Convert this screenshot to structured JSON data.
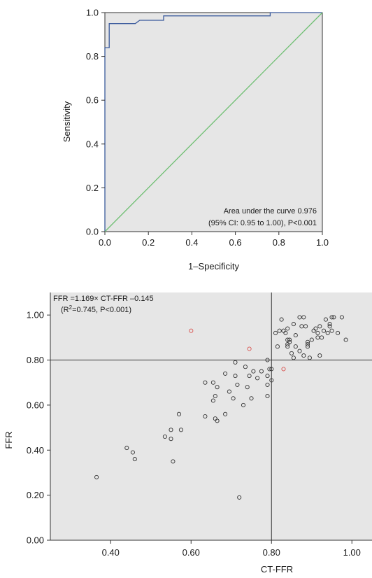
{
  "colors": {
    "panel": "#e6e6e6",
    "roc_line": "#3a5a9c",
    "reference_line": "#6fbf73",
    "axis": "#333333",
    "point": "#333333",
    "outlier_point": "#d9534f"
  },
  "chart_data": [
    {
      "type": "line",
      "title": "",
      "xlabel": "1–Specificity",
      "ylabel": "Sensitivity",
      "xlim": [
        0,
        1
      ],
      "ylim": [
        0,
        1
      ],
      "xticks": [
        "0.0",
        "0.2",
        "0.4",
        "0.6",
        "0.8",
        "1.0"
      ],
      "yticks": [
        "0.0",
        "0.2",
        "0.4",
        "0.6",
        "0.8",
        "1.0"
      ],
      "grid": false,
      "annotation": [
        "Area under the curve 0.976",
        "(95% CI: 0.95 to 1.00), P<0.001"
      ],
      "series": [
        {
          "x": [
            0,
            0,
            0.02,
            0.02,
            0.14,
            0.16,
            0.27,
            0.27,
            0.76,
            0.76,
            1.0
          ],
          "y": [
            0,
            0.84,
            0.84,
            0.95,
            0.95,
            0.965,
            0.965,
            0.985,
            0.985,
            1.0,
            1.0
          ]
        },
        {
          "x": [
            0,
            1
          ],
          "y": [
            0,
            1
          ]
        }
      ]
    },
    {
      "type": "scatter",
      "title": "",
      "xlabel": "CT-FFR",
      "ylabel": "FFR",
      "xlim": [
        0.25,
        1.05
      ],
      "ylim": [
        0,
        1.1
      ],
      "xticks": [
        "0.40",
        "0.60",
        "0.80",
        "1.00"
      ],
      "yticks": [
        "0.00",
        "0.20",
        "0.40",
        "0.60",
        "0.80",
        "1.00"
      ],
      "grid": false,
      "cutoff_lines": {
        "x": 0.8,
        "y": 0.8
      },
      "annotation": {
        "equation": "FFR =1.169× CT-FFR –0.145",
        "r2_prefix": "(R",
        "r2_sup": "2",
        "r2_suffix": "=0.745, P<0.001)"
      },
      "series": [
        {
          "points": [
            [
              0.365,
              0.28
            ],
            [
              0.44,
              0.41
            ],
            [
              0.455,
              0.39
            ],
            [
              0.46,
              0.36
            ],
            [
              0.535,
              0.46
            ],
            [
              0.55,
              0.49
            ],
            [
              0.55,
              0.45
            ],
            [
              0.555,
              0.35
            ],
            [
              0.57,
              0.56
            ],
            [
              0.575,
              0.49
            ],
            [
              0.635,
              0.7
            ],
            [
              0.635,
              0.55
            ],
            [
              0.655,
              0.62
            ],
            [
              0.655,
              0.7
            ],
            [
              0.66,
              0.64
            ],
            [
              0.66,
              0.54
            ],
            [
              0.665,
              0.53
            ],
            [
              0.665,
              0.68
            ],
            [
              0.685,
              0.56
            ],
            [
              0.685,
              0.74
            ],
            [
              0.695,
              0.66
            ],
            [
              0.705,
              0.63
            ],
            [
              0.71,
              0.79
            ],
            [
              0.71,
              0.73
            ],
            [
              0.715,
              0.69
            ],
            [
              0.72,
              0.19
            ],
            [
              0.73,
              0.6
            ],
            [
              0.735,
              0.77
            ],
            [
              0.74,
              0.68
            ],
            [
              0.745,
              0.73
            ],
            [
              0.75,
              0.63
            ],
            [
              0.755,
              0.75
            ],
            [
              0.765,
              0.72
            ],
            [
              0.775,
              0.75
            ],
            [
              0.79,
              0.8
            ],
            [
              0.79,
              0.64
            ],
            [
              0.79,
              0.73
            ],
            [
              0.79,
              0.69
            ],
            [
              0.795,
              0.76
            ],
            [
              0.8,
              0.71
            ],
            [
              0.8,
              0.76
            ],
            [
              0.81,
              0.92
            ],
            [
              0.815,
              0.86
            ],
            [
              0.82,
              0.93
            ],
            [
              0.825,
              0.98
            ],
            [
              0.83,
              0.93
            ],
            [
              0.835,
              0.92
            ],
            [
              0.84,
              0.94
            ],
            [
              0.84,
              0.86
            ],
            [
              0.84,
              0.89
            ],
            [
              0.84,
              0.87
            ],
            [
              0.845,
              0.88
            ],
            [
              0.845,
              0.89
            ],
            [
              0.85,
              0.83
            ],
            [
              0.855,
              0.96
            ],
            [
              0.855,
              0.81
            ],
            [
              0.86,
              0.91
            ],
            [
              0.86,
              0.86
            ],
            [
              0.87,
              0.84
            ],
            [
              0.87,
              0.99
            ],
            [
              0.875,
              0.95
            ],
            [
              0.88,
              0.99
            ],
            [
              0.88,
              0.82
            ],
            [
              0.885,
              0.95
            ],
            [
              0.89,
              0.87
            ],
            [
              0.89,
              0.86
            ],
            [
              0.89,
              0.88
            ],
            [
              0.895,
              0.81
            ],
            [
              0.9,
              0.89
            ],
            [
              0.905,
              0.93
            ],
            [
              0.91,
              0.94
            ],
            [
              0.915,
              0.92
            ],
            [
              0.915,
              0.9
            ],
            [
              0.92,
              0.95
            ],
            [
              0.92,
              0.82
            ],
            [
              0.925,
              0.9
            ],
            [
              0.93,
              0.93
            ],
            [
              0.935,
              0.98
            ],
            [
              0.94,
              0.92
            ],
            [
              0.945,
              0.96
            ],
            [
              0.945,
              0.95
            ],
            [
              0.95,
              0.99
            ],
            [
              0.95,
              0.93
            ],
            [
              0.955,
              0.99
            ],
            [
              0.965,
              0.92
            ],
            [
              0.975,
              0.99
            ],
            [
              0.985,
              0.89
            ]
          ]
        },
        {
          "points": [
            [
              0.6,
              0.93
            ],
            [
              0.745,
              0.85
            ],
            [
              0.83,
              0.76
            ]
          ]
        }
      ]
    }
  ]
}
